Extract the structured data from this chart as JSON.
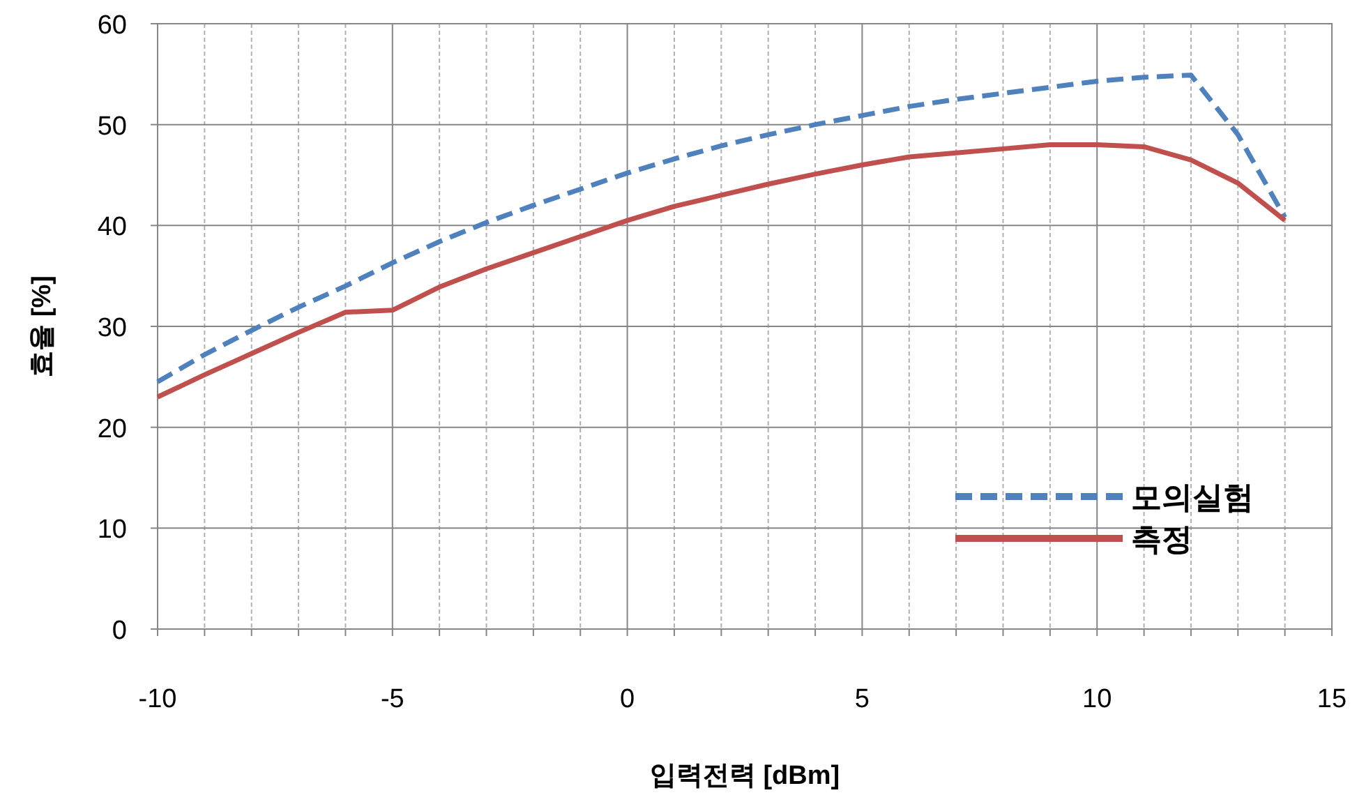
{
  "chart_data": {
    "type": "line",
    "xlabel": "입력전력 [dBm]",
    "ylabel": "효율 [%]",
    "x": [
      -10,
      -9,
      -8,
      -7,
      -6,
      -5,
      -4,
      -3,
      -2,
      -1,
      0,
      1,
      2,
      3,
      4,
      5,
      6,
      7,
      8,
      9,
      10,
      11,
      12,
      13,
      14
    ],
    "xlim": [
      -10,
      15
    ],
    "xticks": [
      -10,
      {
        "value": -9,
        "label": null
      },
      {
        "value": -8,
        "label": null
      },
      {
        "value": -7,
        "label": null
      },
      {
        "value": -6,
        "label": null
      },
      -5,
      {
        "value": -4,
        "label": null
      },
      {
        "value": -3,
        "label": null
      },
      {
        "value": -2,
        "label": null
      },
      {
        "value": -1,
        "label": null
      },
      0,
      {
        "value": 1,
        "label": null
      },
      {
        "value": 2,
        "label": null
      },
      {
        "value": 3,
        "label": null
      },
      {
        "value": 4,
        "label": null
      },
      5,
      {
        "value": 6,
        "label": null
      },
      {
        "value": 7,
        "label": null
      },
      {
        "value": 8,
        "label": null
      },
      {
        "value": 9,
        "label": null
      },
      10,
      {
        "value": 11,
        "label": null
      },
      {
        "value": 12,
        "label": null
      },
      {
        "value": 13,
        "label": null
      },
      {
        "value": 14,
        "label": null
      },
      15
    ],
    "ylim": [
      0,
      60
    ],
    "yticks": [
      0,
      10,
      20,
      30,
      40,
      50,
      60
    ],
    "grid": true,
    "legend": "bottom right",
    "marker": "none",
    "series": [
      {
        "name": "모의실험",
        "color": "#4f81bd",
        "line_style": "dashed",
        "values": [
          24.5,
          27.2,
          29.6,
          31.9,
          34,
          36.3,
          38.4,
          40.3,
          42,
          43.6,
          45.2,
          46.6,
          47.9,
          49,
          50,
          50.9,
          51.8,
          52.5,
          53.1,
          53.7,
          54.3,
          54.7,
          54.9,
          49,
          40.8
        ]
      },
      {
        "name": "측정",
        "color": "#c0504d",
        "line_style": "solid",
        "values": [
          23,
          25.2,
          27.3,
          29.4,
          31.4,
          31.6,
          33.9,
          35.7,
          37.3,
          38.9,
          40.5,
          41.9,
          43,
          44.1,
          45.1,
          46,
          46.8,
          47.2,
          47.6,
          48,
          48,
          47.8,
          46.5,
          44.2,
          40.5
        ]
      }
    ]
  }
}
